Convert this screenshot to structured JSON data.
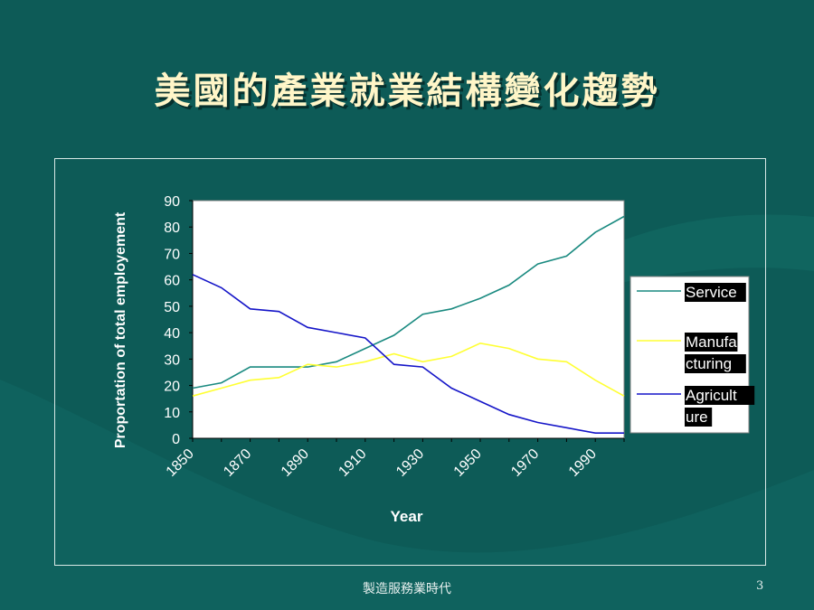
{
  "slide": {
    "title": "美國的產業就業結構變化趨勢",
    "footer": "製造服務業時代",
    "page_number": "3"
  },
  "colors": {
    "background": "#0d5b57",
    "title": "#fff6c8",
    "service": "#1a8a80",
    "manufacturing": "#ffff33",
    "agriculture": "#1515c8"
  },
  "chart_data": {
    "type": "line",
    "title": "",
    "xlabel": "Year",
    "ylabel": "Proportation of total employement",
    "ylim": [
      0,
      90
    ],
    "yticks": [
      0,
      10,
      20,
      30,
      40,
      50,
      60,
      70,
      80,
      90
    ],
    "xtick_labels": [
      "1850",
      "1870",
      "1890",
      "1910",
      "1930",
      "1950",
      "1970",
      "1990"
    ],
    "x": [
      1850,
      1860,
      1870,
      1880,
      1890,
      1900,
      1910,
      1920,
      1930,
      1940,
      1950,
      1960,
      1970,
      1980,
      1990,
      2000
    ],
    "grid": false,
    "legend": "right",
    "series": [
      {
        "name": "Service",
        "color": "#1a8a80",
        "values": [
          19,
          21,
          27,
          27,
          27,
          29,
          34,
          39,
          47,
          49,
          53,
          58,
          66,
          69,
          78,
          84
        ]
      },
      {
        "name": "Manufacturing",
        "color": "#ffff33",
        "values": [
          16,
          19,
          22,
          23,
          28,
          27,
          29,
          32,
          29,
          31,
          36,
          34,
          30,
          29,
          22,
          16
        ]
      },
      {
        "name": "Agriculture",
        "color": "#1515c8",
        "values": [
          62,
          57,
          49,
          48,
          42,
          40,
          38,
          28,
          27,
          19,
          14,
          9,
          6,
          4,
          2,
          2
        ]
      }
    ],
    "legend_entries": [
      {
        "lines": [
          "Service"
        ]
      },
      {
        "lines": [
          "Manufa",
          "cturing"
        ]
      },
      {
        "lines": [
          "Agricult",
          "ure"
        ]
      }
    ]
  }
}
